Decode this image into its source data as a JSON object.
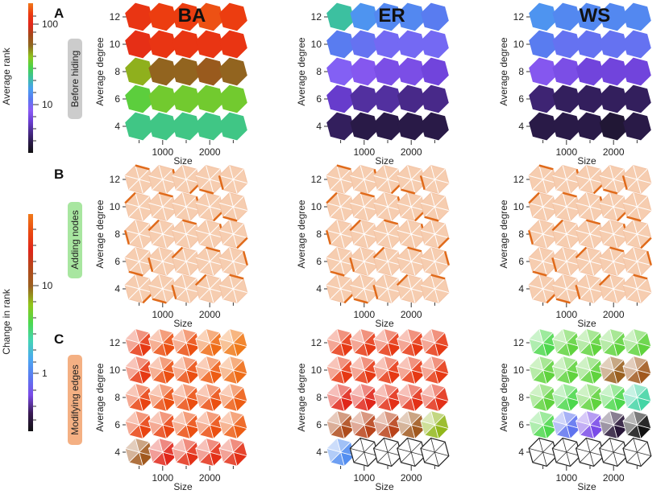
{
  "colors": {
    "rank_scale": [
      "#111111",
      "#2a1a4a",
      "#4b2b8f",
      "#6c3fd6",
      "#8a5cf5",
      "#5a78f0",
      "#4a9ff0",
      "#3cc0a0",
      "#49d24a",
      "#8fc51c",
      "#8e6a20",
      "#a4491a",
      "#e2271a",
      "#ec3a10",
      "#f0781a"
    ],
    "change_scale": [
      "#111111",
      "#3a1a55",
      "#7a4be8",
      "#5a7af0",
      "#4ba8f0",
      "#44d4b4",
      "#4dd84d",
      "#91c51a",
      "#9a6020",
      "#b3481a",
      "#e0261a",
      "#ea4810",
      "#f07a1a"
    ],
    "paler": "#f6cdb0",
    "edge_dark": "#e06a1a",
    "outline": "#222222"
  },
  "colorbars": [
    {
      "label": "Average rank",
      "ticks": [
        "100",
        "10"
      ]
    },
    {
      "label": "Change in rank",
      "ticks": [
        "10",
        "1"
      ]
    }
  ],
  "row_tags": [
    {
      "letter": "A",
      "label": "Before hiding",
      "bg": "#cccccc"
    },
    {
      "letter": "B",
      "label": "Adding nodes",
      "bg": "#a8e6a0"
    },
    {
      "letter": "C",
      "label": "Modifying edges",
      "bg": "#f4b083"
    }
  ],
  "column_titles": [
    "BA",
    "ER",
    "WS"
  ],
  "axes": {
    "xlabel": "Size",
    "ylabel": "Average degree",
    "xticks": [
      "1000",
      "2000"
    ],
    "yticks": [
      "4",
      "6",
      "8",
      "10",
      "12"
    ]
  },
  "chart_data": [
    {
      "type": "heatmap",
      "title": "BA",
      "row": "Before hiding",
      "x": [
        500,
        1000,
        1500,
        2000,
        2500
      ],
      "y": [
        4,
        6,
        8,
        10,
        12
      ],
      "values_log10_rank": [
        [
          1.15,
          1.15,
          1.15,
          1.15,
          1.15
        ],
        [
          1.3,
          1.35,
          1.35,
          1.35,
          1.35
        ],
        [
          1.45,
          1.6,
          1.6,
          1.65,
          1.6
        ],
        [
          1.95,
          2.0,
          2.0,
          2.0,
          2.0
        ],
        [
          2.0,
          2.05,
          2.05,
          2.1,
          2.05
        ]
      ]
    },
    {
      "type": "heatmap",
      "title": "ER",
      "row": "Before hiding",
      "x": [
        500,
        1000,
        1500,
        2000,
        2500
      ],
      "y": [
        4,
        6,
        8,
        10,
        12
      ],
      "values_log10_rank": [
        [
          0.2,
          0.15,
          0.15,
          0.15,
          0.15
        ],
        [
          0.45,
          0.35,
          0.35,
          0.3,
          0.3
        ],
        [
          0.65,
          0.6,
          0.55,
          0.55,
          0.5
        ],
        [
          0.8,
          0.75,
          0.7,
          0.7,
          0.7
        ],
        [
          1.1,
          0.9,
          0.85,
          0.85,
          0.8
        ]
      ]
    },
    {
      "type": "heatmap",
      "title": "WS",
      "row": "Before hiding",
      "x": [
        500,
        1000,
        1500,
        2000,
        2500
      ],
      "y": [
        4,
        6,
        8,
        10,
        12
      ],
      "values_log10_rank": [
        [
          0.15,
          0.15,
          0.15,
          0.1,
          0.15
        ],
        [
          0.25,
          0.2,
          0.2,
          0.2,
          0.2
        ],
        [
          0.6,
          0.55,
          0.5,
          0.5,
          0.5
        ],
        [
          0.8,
          0.75,
          0.75,
          0.75,
          0.75
        ],
        [
          0.9,
          0.85,
          0.85,
          0.85,
          0.85
        ]
      ]
    },
    {
      "type": "heatmap",
      "title": "BA",
      "row": "Adding nodes",
      "x": [
        500,
        1000,
        1500,
        2000,
        2500
      ],
      "y": [
        4,
        6,
        8,
        10,
        12
      ],
      "values_log10_change": [
        [
          2.0,
          2.0,
          2.0,
          2.0,
          2.0
        ],
        [
          2.0,
          2.0,
          2.0,
          2.0,
          2.0
        ],
        [
          2.0,
          2.0,
          2.0,
          2.0,
          2.0
        ],
        [
          2.0,
          2.0,
          2.0,
          2.0,
          2.0
        ],
        [
          2.0,
          2.0,
          2.0,
          2.0,
          2.0
        ]
      ]
    },
    {
      "type": "heatmap",
      "title": "ER",
      "row": "Adding nodes",
      "x": [
        500,
        1000,
        1500,
        2000,
        2500
      ],
      "y": [
        4,
        6,
        8,
        10,
        12
      ],
      "values_log10_change": [
        [
          2.0,
          2.0,
          2.0,
          2.0,
          2.0
        ],
        [
          2.0,
          2.0,
          2.0,
          2.0,
          2.0
        ],
        [
          2.0,
          2.0,
          2.0,
          2.0,
          2.0
        ],
        [
          2.0,
          2.0,
          2.0,
          2.0,
          2.0
        ],
        [
          2.0,
          2.0,
          2.0,
          2.0,
          2.0
        ]
      ]
    },
    {
      "type": "heatmap",
      "title": "WS",
      "row": "Adding nodes",
      "x": [
        500,
        1000,
        1500,
        2000,
        2500
      ],
      "y": [
        4,
        6,
        8,
        10,
        12
      ],
      "values_log10_change": [
        [
          2.0,
          2.0,
          2.0,
          2.0,
          2.0
        ],
        [
          2.0,
          2.0,
          2.0,
          2.0,
          2.0
        ],
        [
          2.0,
          2.0,
          2.0,
          2.0,
          2.0
        ],
        [
          2.0,
          2.0,
          2.0,
          2.0,
          2.0
        ],
        [
          2.0,
          2.0,
          2.0,
          2.0,
          2.0
        ]
      ]
    },
    {
      "type": "heatmap",
      "title": "BA",
      "row": "Modifying edges",
      "x": [
        500,
        1000,
        1500,
        2000,
        2500
      ],
      "y": [
        4,
        6,
        8,
        10,
        12
      ],
      "values_log10_change": [
        [
          1.45,
          1.75,
          1.8,
          1.8,
          1.8
        ],
        [
          1.9,
          1.9,
          1.95,
          1.95,
          2.0
        ],
        [
          1.9,
          1.95,
          1.95,
          1.95,
          2.0
        ],
        [
          1.85,
          1.95,
          1.95,
          2.0,
          2.05
        ],
        [
          1.85,
          1.95,
          1.95,
          2.05,
          2.1
        ]
      ]
    },
    {
      "type": "heatmap",
      "title": "ER",
      "row": "Modifying edges",
      "x": [
        500,
        1000,
        1500,
        2000,
        2500
      ],
      "y": [
        4,
        6,
        8,
        10,
        12
      ],
      "values_log10_change": [
        [
          0.6,
          null,
          null,
          null,
          null
        ],
        [
          1.55,
          1.6,
          1.6,
          1.45,
          1.25
        ],
        [
          1.75,
          1.75,
          1.8,
          1.8,
          1.8
        ],
        [
          1.85,
          1.85,
          1.85,
          1.85,
          1.85
        ],
        [
          1.85,
          1.85,
          1.85,
          1.85,
          1.85
        ]
      ]
    },
    {
      "type": "heatmap",
      "title": "WS",
      "row": "Modifying edges",
      "x": [
        500,
        1000,
        1500,
        2000,
        2500
      ],
      "y": [
        4,
        6,
        8,
        10,
        12
      ],
      "values_log10_change": [
        [
          null,
          null,
          null,
          null,
          null
        ],
        [
          1.05,
          0.5,
          0.35,
          0.1,
          0.0
        ],
        [
          1.1,
          1.05,
          1.1,
          1.05,
          0.9
        ],
        [
          1.1,
          1.1,
          1.1,
          1.4,
          1.45
        ],
        [
          1.05,
          1.1,
          1.1,
          1.1,
          1.1
        ]
      ]
    }
  ]
}
